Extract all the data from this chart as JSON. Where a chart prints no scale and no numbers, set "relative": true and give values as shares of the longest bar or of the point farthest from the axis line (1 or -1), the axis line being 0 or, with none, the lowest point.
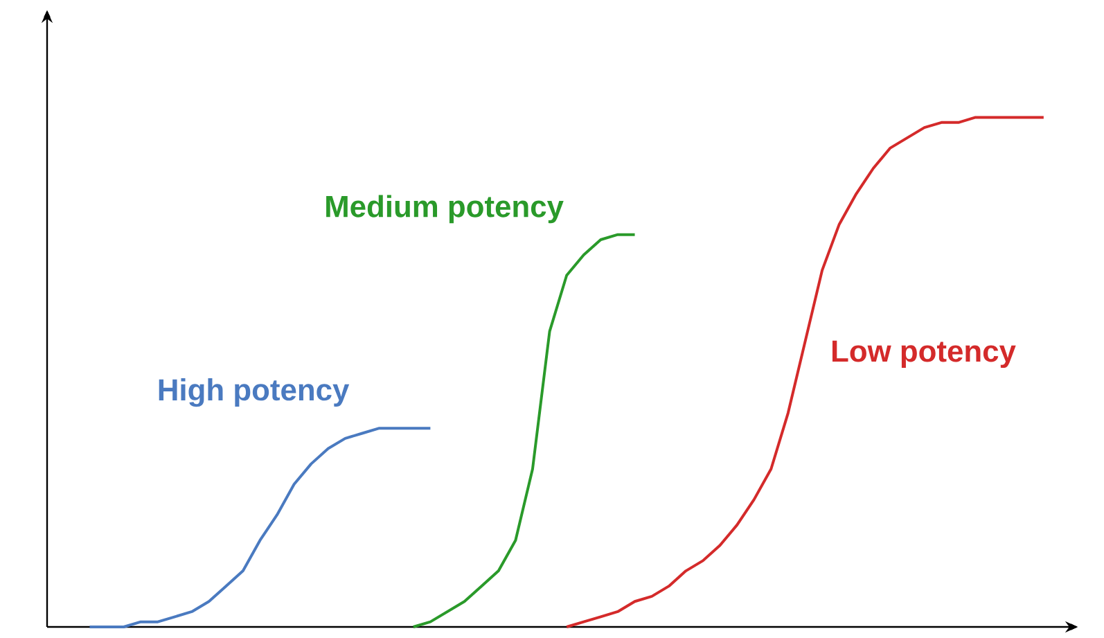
{
  "chart_data": {
    "type": "line",
    "relative": true,
    "categories": [
      null,
      null,
      null,
      null,
      null,
      null,
      null,
      null,
      null,
      null,
      null,
      null,
      null,
      null,
      null,
      null,
      null,
      null,
      null,
      null,
      null,
      null,
      null,
      null,
      null,
      null,
      null,
      null,
      null,
      null,
      null,
      null,
      null,
      null,
      null,
      null,
      null,
      null,
      null,
      null,
      null,
      null,
      null,
      null,
      null,
      null,
      null,
      null,
      null,
      null,
      null,
      null,
      null,
      null,
      null,
      null,
      null
    ],
    "series": [
      {
        "name": "High potency",
        "color": "#4a7ac0",
        "values": [
          0,
          0,
          0,
          0.01,
          0.01,
          0.02,
          0.03,
          0.05,
          0.08,
          0.11,
          0.17,
          0.22,
          0.28,
          0.32,
          0.35,
          0.37,
          0.38,
          0.39,
          0.39,
          0.39,
          0.39,
          null,
          null,
          null,
          null,
          null,
          null,
          null,
          null,
          null,
          null,
          null,
          null,
          null,
          null,
          null,
          null,
          null,
          null,
          null,
          null,
          null,
          null,
          null,
          null,
          null,
          null,
          null,
          null,
          null,
          null,
          null,
          null,
          null,
          null,
          null,
          null
        ]
      },
      {
        "name": "Medium potency",
        "color": "#2a9a2a",
        "values": [
          null,
          null,
          null,
          null,
          null,
          null,
          null,
          null,
          null,
          null,
          null,
          null,
          null,
          null,
          null,
          null,
          null,
          null,
          null,
          0,
          0.01,
          0.03,
          0.05,
          0.08,
          0.11,
          0.17,
          0.31,
          0.58,
          0.69,
          0.73,
          0.76,
          0.77,
          0.77,
          null,
          null,
          null,
          null,
          null,
          null,
          null,
          null,
          null,
          null,
          null,
          null,
          null,
          null,
          null,
          null,
          null,
          null,
          null,
          null,
          null,
          null,
          null,
          null
        ]
      },
      {
        "name": "Low potency",
        "color": "#d42a2a",
        "values": [
          null,
          null,
          null,
          null,
          null,
          null,
          null,
          null,
          null,
          null,
          null,
          null,
          null,
          null,
          null,
          null,
          null,
          null,
          null,
          null,
          null,
          null,
          null,
          null,
          null,
          null,
          null,
          null,
          0,
          0.01,
          0.02,
          0.03,
          0.05,
          0.06,
          0.08,
          0.11,
          0.13,
          0.16,
          0.2,
          0.25,
          0.31,
          0.42,
          0.56,
          0.7,
          0.79,
          0.85,
          0.9,
          0.94,
          0.96,
          0.98,
          0.99,
          0.99,
          1,
          1,
          1,
          1,
          1
        ]
      }
    ]
  }
}
